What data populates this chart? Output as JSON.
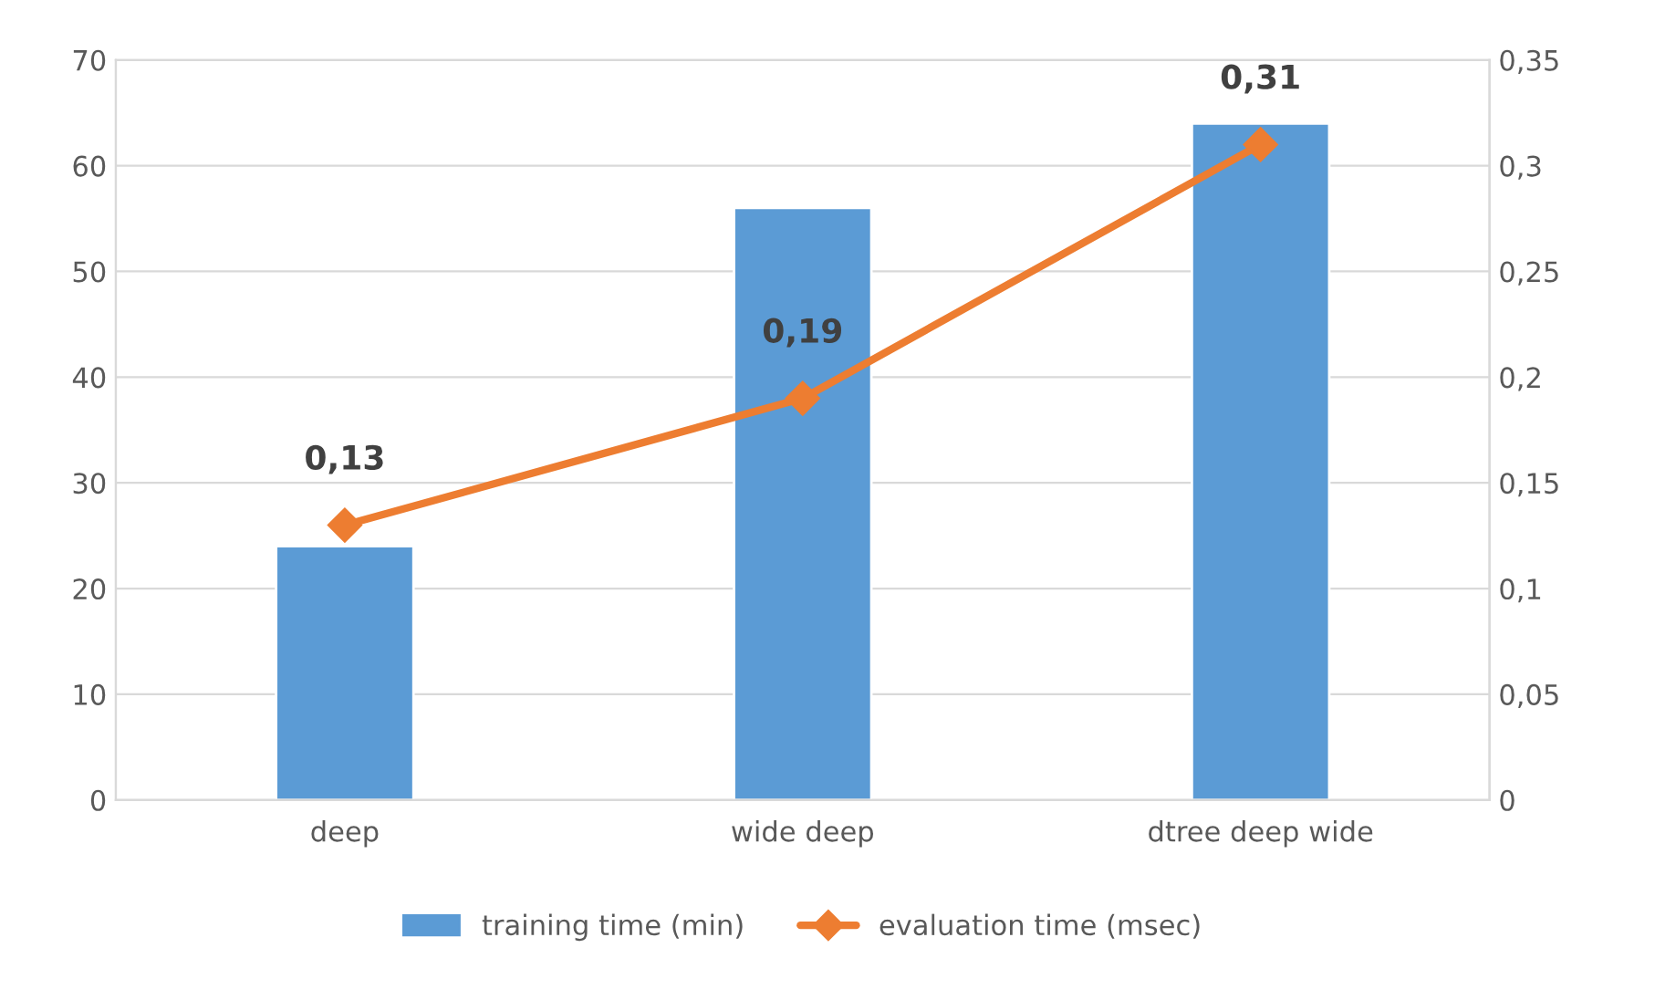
{
  "chart_data": {
    "type": "bar",
    "categories": [
      "deep",
      "wide deep",
      "dtree deep wide"
    ],
    "series": [
      {
        "name": "training time (min)",
        "color": "#5b9bd5",
        "values": [
          24,
          56,
          64
        ]
      },
      {
        "name": "evaluation time (msec)",
        "type": "line",
        "axis": "y2",
        "color": "#ed7d31",
        "values": [
          0.13,
          0.19,
          0.31
        ],
        "value_labels": [
          "0,13",
          "0,19",
          "0,31"
        ]
      }
    ],
    "ylim": [
      0,
      70
    ],
    "yticks": [
      0,
      10,
      20,
      30,
      40,
      50,
      60,
      70
    ],
    "y2lim": [
      0,
      0.35
    ],
    "y2ticks": [
      0,
      {
        "value": 0.05,
        "label": "0,05"
      },
      {
        "value": 0.1,
        "label": "0,1"
      },
      {
        "value": 0.15,
        "label": "0,15"
      },
      {
        "value": 0.2,
        "label": "0,2"
      },
      {
        "value": 0.25,
        "label": "0,25"
      },
      {
        "value": 0.3,
        "label": "0,3"
      },
      {
        "value": 0.35,
        "label": "0,35"
      }
    ],
    "grid": "y",
    "legend": "bottom",
    "marker": "diamond",
    "line_style": "solid"
  }
}
